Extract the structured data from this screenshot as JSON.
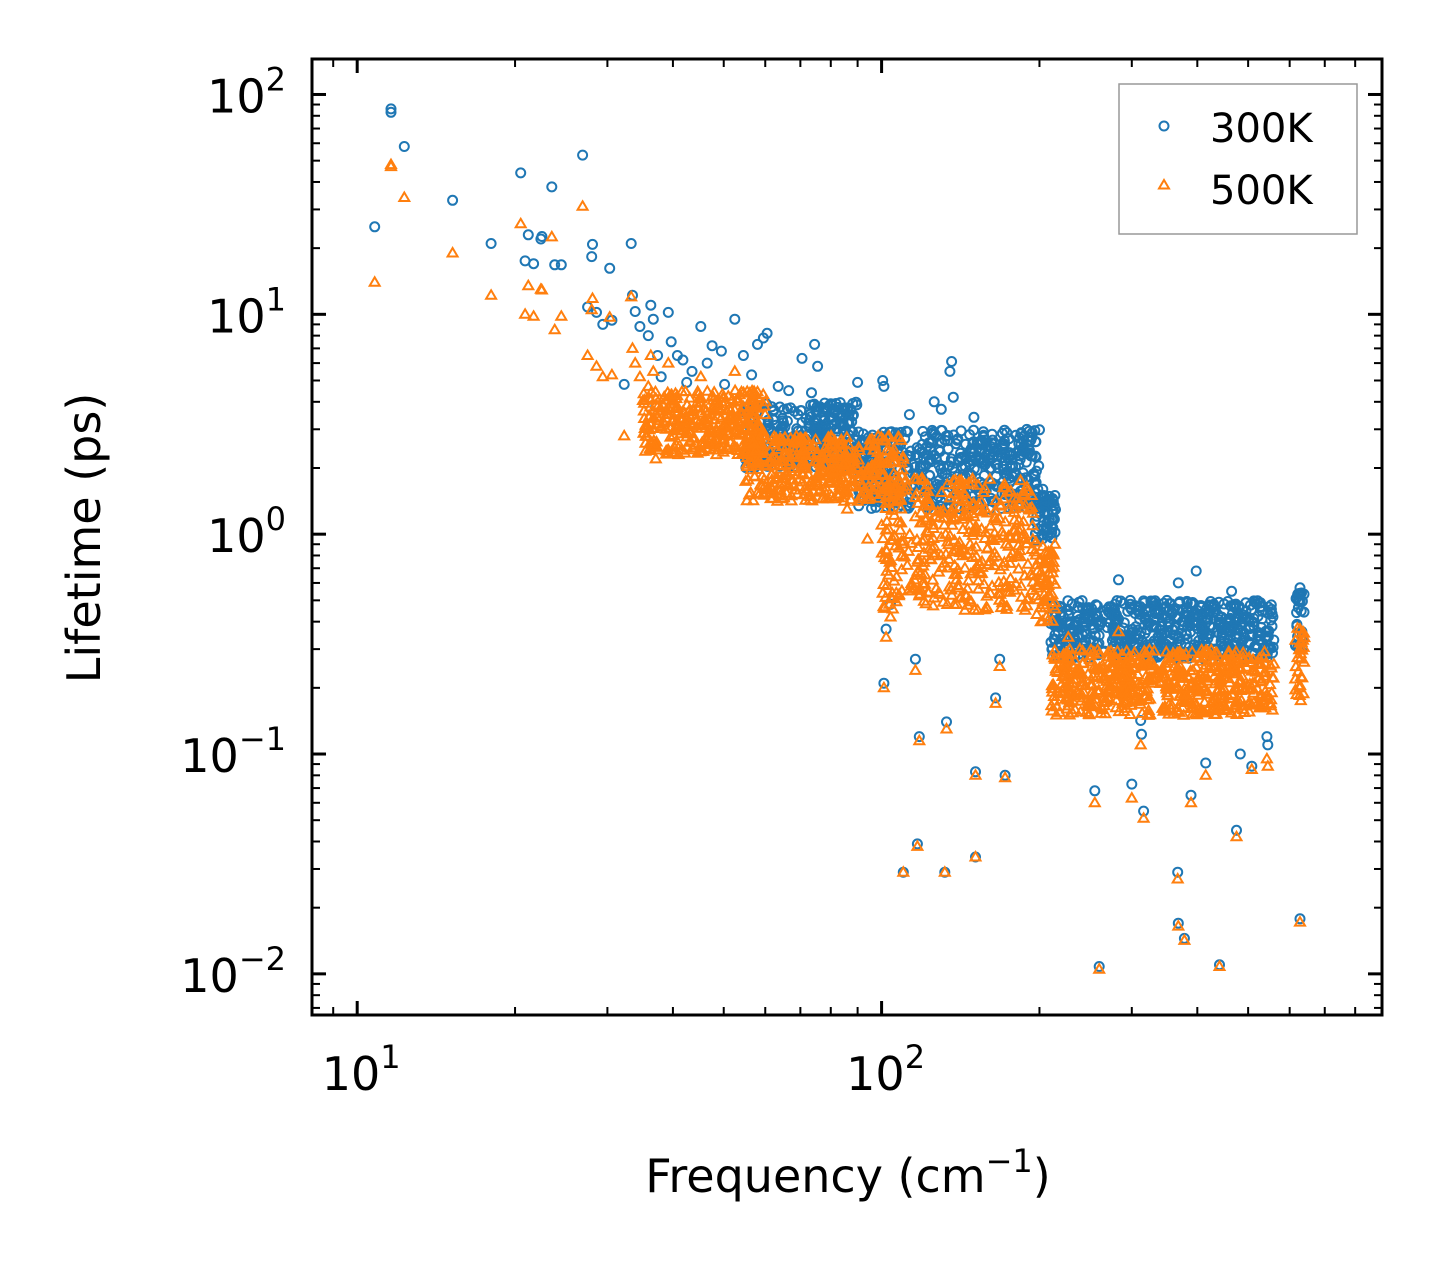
{
  "chart_data": {
    "type": "scatter",
    "xscale": "log",
    "yscale": "log",
    "xlim": [
      8.2,
      900
    ],
    "ylim": [
      0.0065,
      145
    ],
    "xlabel": "Frequency (cm",
    "xlabel_sup": "−1",
    "xlabel_tail": ")",
    "ylabel": "Lifetime (ps)",
    "x_ticks": [
      {
        "value": 10,
        "base": "10",
        "exp": "1"
      },
      {
        "value": 100,
        "base": "10",
        "exp": "2"
      }
    ],
    "y_ticks": [
      {
        "value": 0.01,
        "base": "10",
        "exp": "−2"
      },
      {
        "value": 0.1,
        "base": "10",
        "exp": "−1"
      },
      {
        "value": 1,
        "base": "10",
        "exp": "0"
      },
      {
        "value": 10,
        "base": "10",
        "exp": "1"
      },
      {
        "value": 100,
        "base": "10",
        "exp": "2"
      }
    ],
    "legend_position": "top-right",
    "series": [
      {
        "name": "300K",
        "marker": "circle",
        "color": "#1f77b4",
        "points": [
          [
            10.8,
            25
          ],
          [
            11.6,
            83
          ],
          [
            11.6,
            86
          ],
          [
            12.3,
            58
          ],
          [
            15.2,
            33
          ],
          [
            18,
            21
          ],
          [
            20.5,
            44
          ],
          [
            20.9,
            17.5
          ],
          [
            21.2,
            23
          ],
          [
            21.7,
            17
          ],
          [
            22.4,
            22
          ],
          [
            22.5,
            22.6
          ],
          [
            23.5,
            38
          ],
          [
            23.8,
            16.8
          ],
          [
            24.5,
            16.8
          ],
          [
            26.9,
            53
          ],
          [
            27.5,
            10.8
          ],
          [
            28.1,
            20.8
          ],
          [
            28,
            18.3
          ],
          [
            28.6,
            10.2
          ],
          [
            29.4,
            9
          ],
          [
            30.3,
            16.2
          ],
          [
            30.6,
            9.4
          ],
          [
            32.3,
            4.8
          ],
          [
            33.3,
            21
          ],
          [
            33.5,
            12.2
          ],
          [
            33.9,
            10.3
          ],
          [
            34.6,
            8.8
          ],
          [
            35.9,
            8
          ],
          [
            36.3,
            11
          ],
          [
            36.7,
            9.5
          ],
          [
            37.1,
            3.8
          ],
          [
            37.4,
            6.5
          ],
          [
            38,
            5.2
          ],
          [
            39.2,
            10.2
          ],
          [
            39.7,
            7.5
          ],
          [
            40.8,
            6.5
          ],
          [
            41.8,
            6.2
          ],
          [
            42.5,
            4.9
          ],
          [
            43.5,
            5.5
          ],
          [
            45.2,
            8.8
          ],
          [
            46.5,
            6
          ],
          [
            47.5,
            7.2
          ],
          [
            49.5,
            6.8
          ],
          [
            50.2,
            4.8
          ],
          [
            52.5,
            9.5
          ],
          [
            54.5,
            6.5
          ],
          [
            56.5,
            5.3
          ],
          [
            58,
            7.3
          ],
          [
            59.5,
            7.8
          ],
          [
            60.5,
            8.2
          ],
          [
            63.5,
            4.7
          ],
          [
            66.5,
            4.5
          ],
          [
            70.5,
            6.3
          ],
          [
            73.5,
            4.4
          ],
          [
            74.5,
            7.3
          ],
          [
            75.5,
            5.8
          ],
          [
            90,
            4.9
          ],
          [
            100.5,
            5
          ],
          [
            101,
            4.7
          ],
          [
            113,
            3.5
          ],
          [
            126,
            4
          ],
          [
            130,
            3.7
          ],
          [
            136,
            6.1
          ],
          [
            135,
            5.5
          ],
          [
            137,
            4.2
          ],
          [
            150,
            3.4
          ],
          [
            162,
            2.5
          ],
          [
            196,
            1.55
          ],
          [
            203,
            1.6
          ],
          [
            204,
            1.5
          ],
          [
            214,
            1.5
          ],
          [
            101,
            0.21
          ],
          [
            102,
            0.37
          ],
          [
            104,
            0.48
          ],
          [
            116,
            0.27
          ],
          [
            118,
            0.12
          ],
          [
            133,
            0.14
          ],
          [
            151,
            0.083
          ],
          [
            165,
            0.18
          ],
          [
            168,
            0.27
          ],
          [
            172,
            0.08
          ],
          [
            227,
            0.45
          ],
          [
            255,
            0.068
          ],
          [
            283,
            0.62
          ],
          [
            298,
            0.5
          ],
          [
            300,
            0.073
          ],
          [
            308,
            0.29
          ],
          [
            312,
            0.142
          ],
          [
            313,
            0.123
          ],
          [
            316,
            0.055
          ],
          [
            350,
            0.5
          ],
          [
            368,
            0.6
          ],
          [
            389,
            0.065
          ],
          [
            398,
            0.68
          ],
          [
            415,
            0.091
          ],
          [
            430,
            0.48
          ],
          [
            465,
            0.55
          ],
          [
            475,
            0.045
          ],
          [
            483,
            0.1
          ],
          [
            508,
            0.088
          ],
          [
            543,
            0.12
          ],
          [
            545,
            0.11
          ],
          [
            110,
            0.029
          ],
          [
            117,
            0.039
          ],
          [
            132,
            0.029
          ],
          [
            151,
            0.034
          ],
          [
            260,
            0.0108
          ],
          [
            367,
            0.029
          ],
          [
            368,
            0.017
          ],
          [
            378,
            0.0145
          ],
          [
            441,
            0.011
          ],
          [
            628,
            0.0178
          ],
          [
            628,
            0.57
          ],
          [
            628,
            0.5
          ],
          [
            632,
            0.54
          ]
        ],
        "bands": [
          {
            "x": [
              55,
              90
            ],
            "y": [
              2.0,
              4.0
            ]
          },
          {
            "x": [
              90,
              200
            ],
            "y": [
              1.3,
              3.0
            ]
          },
          {
            "x": [
              195,
              215
            ],
            "y": [
              0.9,
              1.5
            ]
          },
          {
            "x": [
              210,
              560
            ],
            "y": [
              0.27,
              0.5
            ]
          },
          {
            "x": [
              615,
              640
            ],
            "y": [
              0.3,
              0.55
            ]
          }
        ]
      },
      {
        "name": "500K",
        "marker": "triangle",
        "color": "#ff7f0e",
        "points": [
          [
            10.8,
            14
          ],
          [
            11.6,
            48
          ],
          [
            11.6,
            47
          ],
          [
            12.3,
            34
          ],
          [
            15.2,
            19
          ],
          [
            18,
            12.2
          ],
          [
            20.5,
            25.8
          ],
          [
            20.9,
            10
          ],
          [
            21.2,
            13.5
          ],
          [
            21.7,
            9.8
          ],
          [
            22.4,
            13
          ],
          [
            22.5,
            12.9
          ],
          [
            23.5,
            22.5
          ],
          [
            23.8,
            8.5
          ],
          [
            24.5,
            9.8
          ],
          [
            26.9,
            31
          ],
          [
            27.5,
            6.5
          ],
          [
            28.1,
            11.8
          ],
          [
            28,
            10.5
          ],
          [
            28.6,
            5.8
          ],
          [
            29.4,
            5.2
          ],
          [
            30.3,
            9.7
          ],
          [
            30.6,
            5.3
          ],
          [
            32.3,
            2.8
          ],
          [
            33.3,
            12
          ],
          [
            33.5,
            7
          ],
          [
            33.9,
            6
          ],
          [
            34.6,
            5.2
          ],
          [
            35.9,
            4.7
          ],
          [
            36.3,
            6.5
          ],
          [
            36.7,
            5.5
          ],
          [
            37.1,
            2.2
          ],
          [
            37.4,
            3.8
          ],
          [
            38,
            3.1
          ],
          [
            39.2,
            6
          ],
          [
            39.7,
            4.3
          ],
          [
            40.8,
            3.8
          ],
          [
            41.8,
            3.6
          ],
          [
            42.5,
            2.9
          ],
          [
            43.5,
            3.2
          ],
          [
            45.2,
            5.2
          ],
          [
            46.5,
            3.5
          ],
          [
            47.5,
            4.2
          ],
          [
            49.5,
            4
          ],
          [
            50.2,
            2.8
          ],
          [
            52.5,
            5.5
          ],
          [
            54.5,
            3.8
          ],
          [
            56.5,
            3
          ],
          [
            58,
            4.2
          ],
          [
            60,
            4
          ],
          [
            62,
            1.6
          ],
          [
            64,
            1.5
          ],
          [
            66,
            1.9
          ],
          [
            76,
            1.55
          ],
          [
            79,
            1.45
          ],
          [
            86,
            1.3
          ],
          [
            94,
            0.95
          ],
          [
            100,
            1.1
          ],
          [
            102,
            0.85
          ],
          [
            116,
            1.2
          ],
          [
            124,
            0.93
          ],
          [
            140,
            1.7
          ],
          [
            150,
            1.2
          ],
          [
            162,
            0.95
          ],
          [
            197,
            0.92
          ],
          [
            203,
            0.88
          ],
          [
            205,
            0.82
          ],
          [
            214,
            0.9
          ],
          [
            101,
            0.2
          ],
          [
            102,
            0.34
          ],
          [
            104,
            0.42
          ],
          [
            116,
            0.24
          ],
          [
            118,
            0.115
          ],
          [
            133,
            0.13
          ],
          [
            151,
            0.08
          ],
          [
            165,
            0.17
          ],
          [
            168,
            0.25
          ],
          [
            172,
            0.078
          ],
          [
            227,
            0.34
          ],
          [
            255,
            0.06
          ],
          [
            283,
            0.36
          ],
          [
            300,
            0.063
          ],
          [
            308,
            0.23
          ],
          [
            312,
            0.11
          ],
          [
            316,
            0.051
          ],
          [
            389,
            0.06
          ],
          [
            415,
            0.08
          ],
          [
            475,
            0.042
          ],
          [
            508,
            0.085
          ],
          [
            543,
            0.095
          ],
          [
            545,
            0.088
          ],
          [
            110,
            0.029
          ],
          [
            117,
            0.038
          ],
          [
            132,
            0.029
          ],
          [
            151,
            0.034
          ],
          [
            260,
            0.0105
          ],
          [
            367,
            0.027
          ],
          [
            368,
            0.0165
          ],
          [
            378,
            0.0142
          ],
          [
            441,
            0.0108
          ],
          [
            628,
            0.0172
          ],
          [
            628,
            0.37
          ],
          [
            628,
            0.32
          ],
          [
            632,
            0.3
          ],
          [
            630,
            0.175
          ],
          [
            627,
            0.2
          ]
        ],
        "bands": [
          {
            "x": [
              35,
              60
            ],
            "y": [
              2.3,
              4.5
            ]
          },
          {
            "x": [
              55,
              110
            ],
            "y": [
              1.4,
              2.8
            ]
          },
          {
            "x": [
              100,
              195
            ],
            "y": [
              0.45,
              1.8
            ]
          },
          {
            "x": [
              195,
              215
            ],
            "y": [
              0.38,
              0.85
            ]
          },
          {
            "x": [
              210,
              560
            ],
            "y": [
              0.15,
              0.3
            ]
          },
          {
            "x": [
              615,
              640
            ],
            "y": [
              0.18,
              0.38
            ]
          }
        ]
      }
    ]
  }
}
